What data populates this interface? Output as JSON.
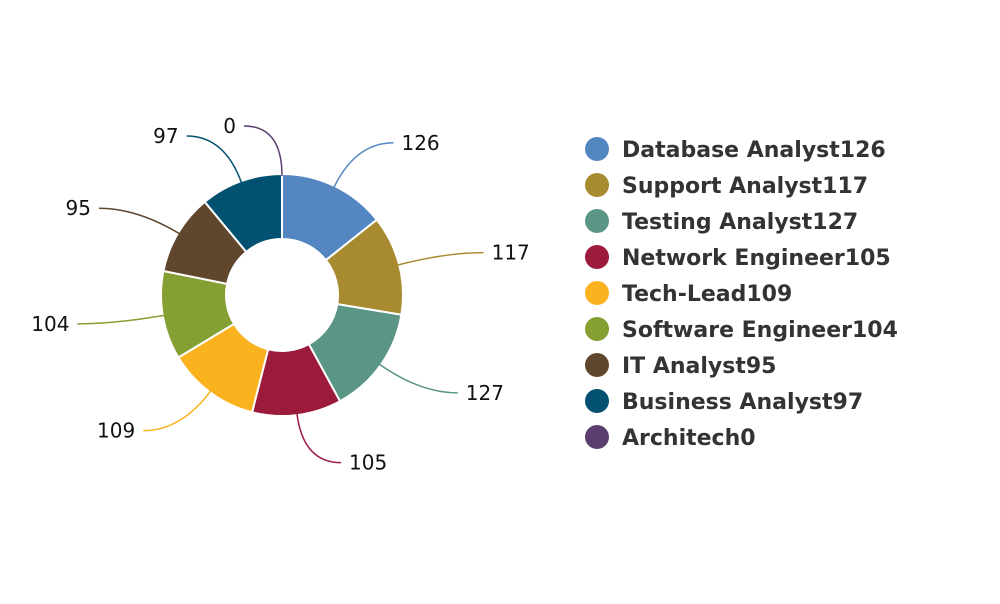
{
  "chart_data": {
    "type": "pie",
    "variant": "donut",
    "title": "",
    "legend_position": "right",
    "slices": [
      {
        "label": "Database Analyst",
        "value": 126,
        "color": "#5486c1"
      },
      {
        "label": "Support Analyst",
        "value": 117,
        "color": "#a88b30"
      },
      {
        "label": "Testing Analyst",
        "value": 127,
        "color": "#5a9585"
      },
      {
        "label": "Network Engineer",
        "value": 105,
        "color": "#9c1a3b"
      },
      {
        "label": "Tech-Lead",
        "value": 109,
        "color": "#fbb21f"
      },
      {
        "label": "Software Engineer",
        "value": 104,
        "color": "#859f33"
      },
      {
        "label": "IT Analyst",
        "value": 95,
        "color": "#61462e"
      },
      {
        "label": "Business Analyst",
        "value": 97,
        "color": "#035170"
      },
      {
        "label": "Architech",
        "value": 0,
        "color": "#5b3f6e"
      }
    ]
  }
}
